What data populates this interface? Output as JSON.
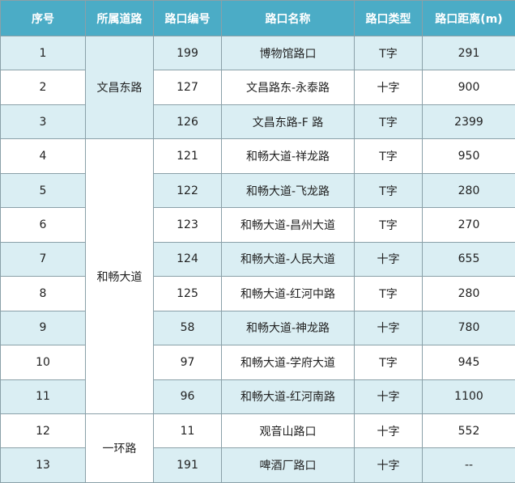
{
  "table": {
    "header": [
      "序号",
      "所属道路",
      "路口编号",
      "路口名称",
      "路口类型",
      "路口距离(m)"
    ],
    "rows": [
      {
        "no": "1",
        "road": "文昌东路",
        "id": "199",
        "name": "博物馆路口",
        "type": "T字",
        "dist": "291"
      },
      {
        "no": "2",
        "id": "127",
        "name": "文昌路东-永泰路",
        "type": "十字",
        "dist": "900"
      },
      {
        "no": "3",
        "id": "126",
        "name": "文昌东路-F 路",
        "type": "T字",
        "dist": "2399"
      },
      {
        "no": "4",
        "road": "和畅大道",
        "id": "121",
        "name": "和畅大道-祥龙路",
        "type": "T字",
        "dist": "950"
      },
      {
        "no": "5",
        "id": "122",
        "name": "和畅大道-飞龙路",
        "type": "T字",
        "dist": "280"
      },
      {
        "no": "6",
        "id": "123",
        "name": "和畅大道-昌州大道",
        "type": "T字",
        "dist": "270"
      },
      {
        "no": "7",
        "id": "124",
        "name": "和畅大道-人民大道",
        "type": "十字",
        "dist": "655"
      },
      {
        "no": "8",
        "id": "125",
        "name": "和畅大道-红河中路",
        "type": "T字",
        "dist": "280"
      },
      {
        "no": "9",
        "id": "58",
        "name": "和畅大道-神龙路",
        "type": "十字",
        "dist": "780"
      },
      {
        "no": "10",
        "id": "97",
        "name": "和畅大道-学府大道",
        "type": "T字",
        "dist": "945"
      },
      {
        "no": "11",
        "id": "96",
        "name": "和畅大道-红河南路",
        "type": "十字",
        "dist": "1100"
      },
      {
        "no": "12",
        "road": "一环路",
        "id": "11",
        "name": "观音山路口",
        "type": "十字",
        "dist": "552"
      },
      {
        "no": "13",
        "id": "191",
        "name": "啤酒厂路口",
        "type": "十字",
        "dist": "--"
      }
    ]
  }
}
